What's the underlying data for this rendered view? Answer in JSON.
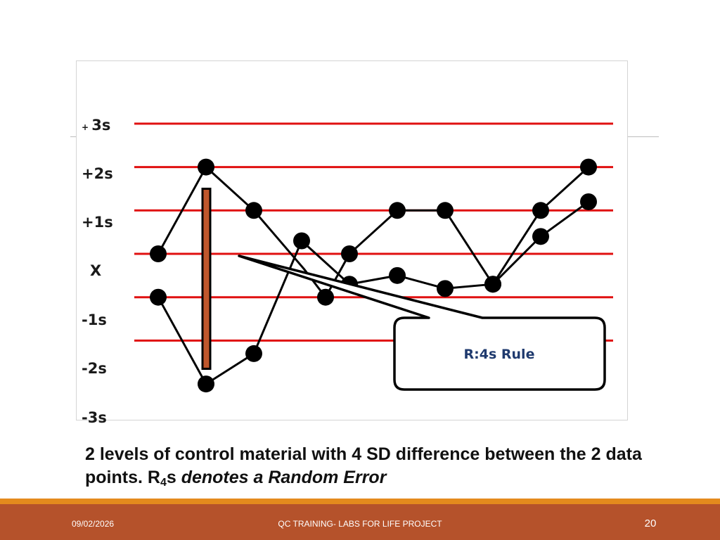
{
  "chart_data": {
    "type": "line",
    "ylim": [
      -3,
      3
    ],
    "y_tick_labels": [
      {
        "value": 3,
        "prefix": "+",
        "label": "3s"
      },
      {
        "value": 2,
        "prefix": "",
        "label": "+2s"
      },
      {
        "value": 1,
        "prefix": "",
        "label": "+1s"
      },
      {
        "value": 0,
        "prefix": "",
        "label": "X"
      },
      {
        "value": -1,
        "prefix": "",
        "label": "-1s"
      },
      {
        "value": -2,
        "prefix": "",
        "label": "-2s"
      },
      {
        "value": -3,
        "prefix": "",
        "label": "-3s"
      }
    ],
    "reference_lines": [
      3,
      2,
      1,
      0,
      -1,
      -2,
      -3
    ],
    "x": [
      1,
      2,
      3,
      4,
      5,
      6,
      7,
      8,
      9,
      10,
      11
    ],
    "series": [
      {
        "values": [
          0,
          2,
          1,
          -1,
          0,
          1,
          1,
          -0.7,
          1,
          2,
          null
        ]
      },
      {
        "values": [
          -1,
          -3,
          -2.3,
          0.3,
          -0.7,
          -0.5,
          -0.8,
          -0.7,
          0.4,
          1.2,
          null
        ]
      }
    ],
    "series_points": [
      [
        [
          1,
          0
        ],
        [
          2,
          2
        ],
        [
          3,
          1
        ],
        [
          4.05,
          -0.35
        ],
        [
          4.5,
          -1
        ],
        [
          5,
          0
        ],
        [
          6,
          1
        ],
        [
          7,
          1
        ],
        [
          8,
          -0.7
        ],
        [
          9,
          1
        ],
        [
          10,
          2
        ]
      ],
      [
        [
          1,
          -1
        ],
        [
          2,
          -3
        ],
        [
          3,
          -2.3
        ],
        [
          4,
          0.3
        ],
        [
          5,
          -0.7
        ],
        [
          6,
          -0.5
        ],
        [
          7,
          -0.8
        ],
        [
          8,
          -0.7
        ],
        [
          9,
          0.4
        ],
        [
          10,
          1.2
        ]
      ]
    ],
    "highlight_bar": {
      "x": 2,
      "from": -2.65,
      "to": 1.5
    },
    "annotation": "R:4s Rule",
    "colors": {
      "reference_line": "#e01010",
      "series": "#000000",
      "bar_fill": "#c0572c",
      "bar_stroke": "#000000"
    }
  },
  "caption": {
    "part1": "2 levels of control material with 4 SD difference between the 2 data points. R",
    "subscript": "4",
    "part2": "s ",
    "italic": "denotes a Random Error"
  },
  "footer": {
    "date": "09/02/2026",
    "title": "QC TRAINING- LABS FOR LIFE PROJECT",
    "page": "20"
  }
}
